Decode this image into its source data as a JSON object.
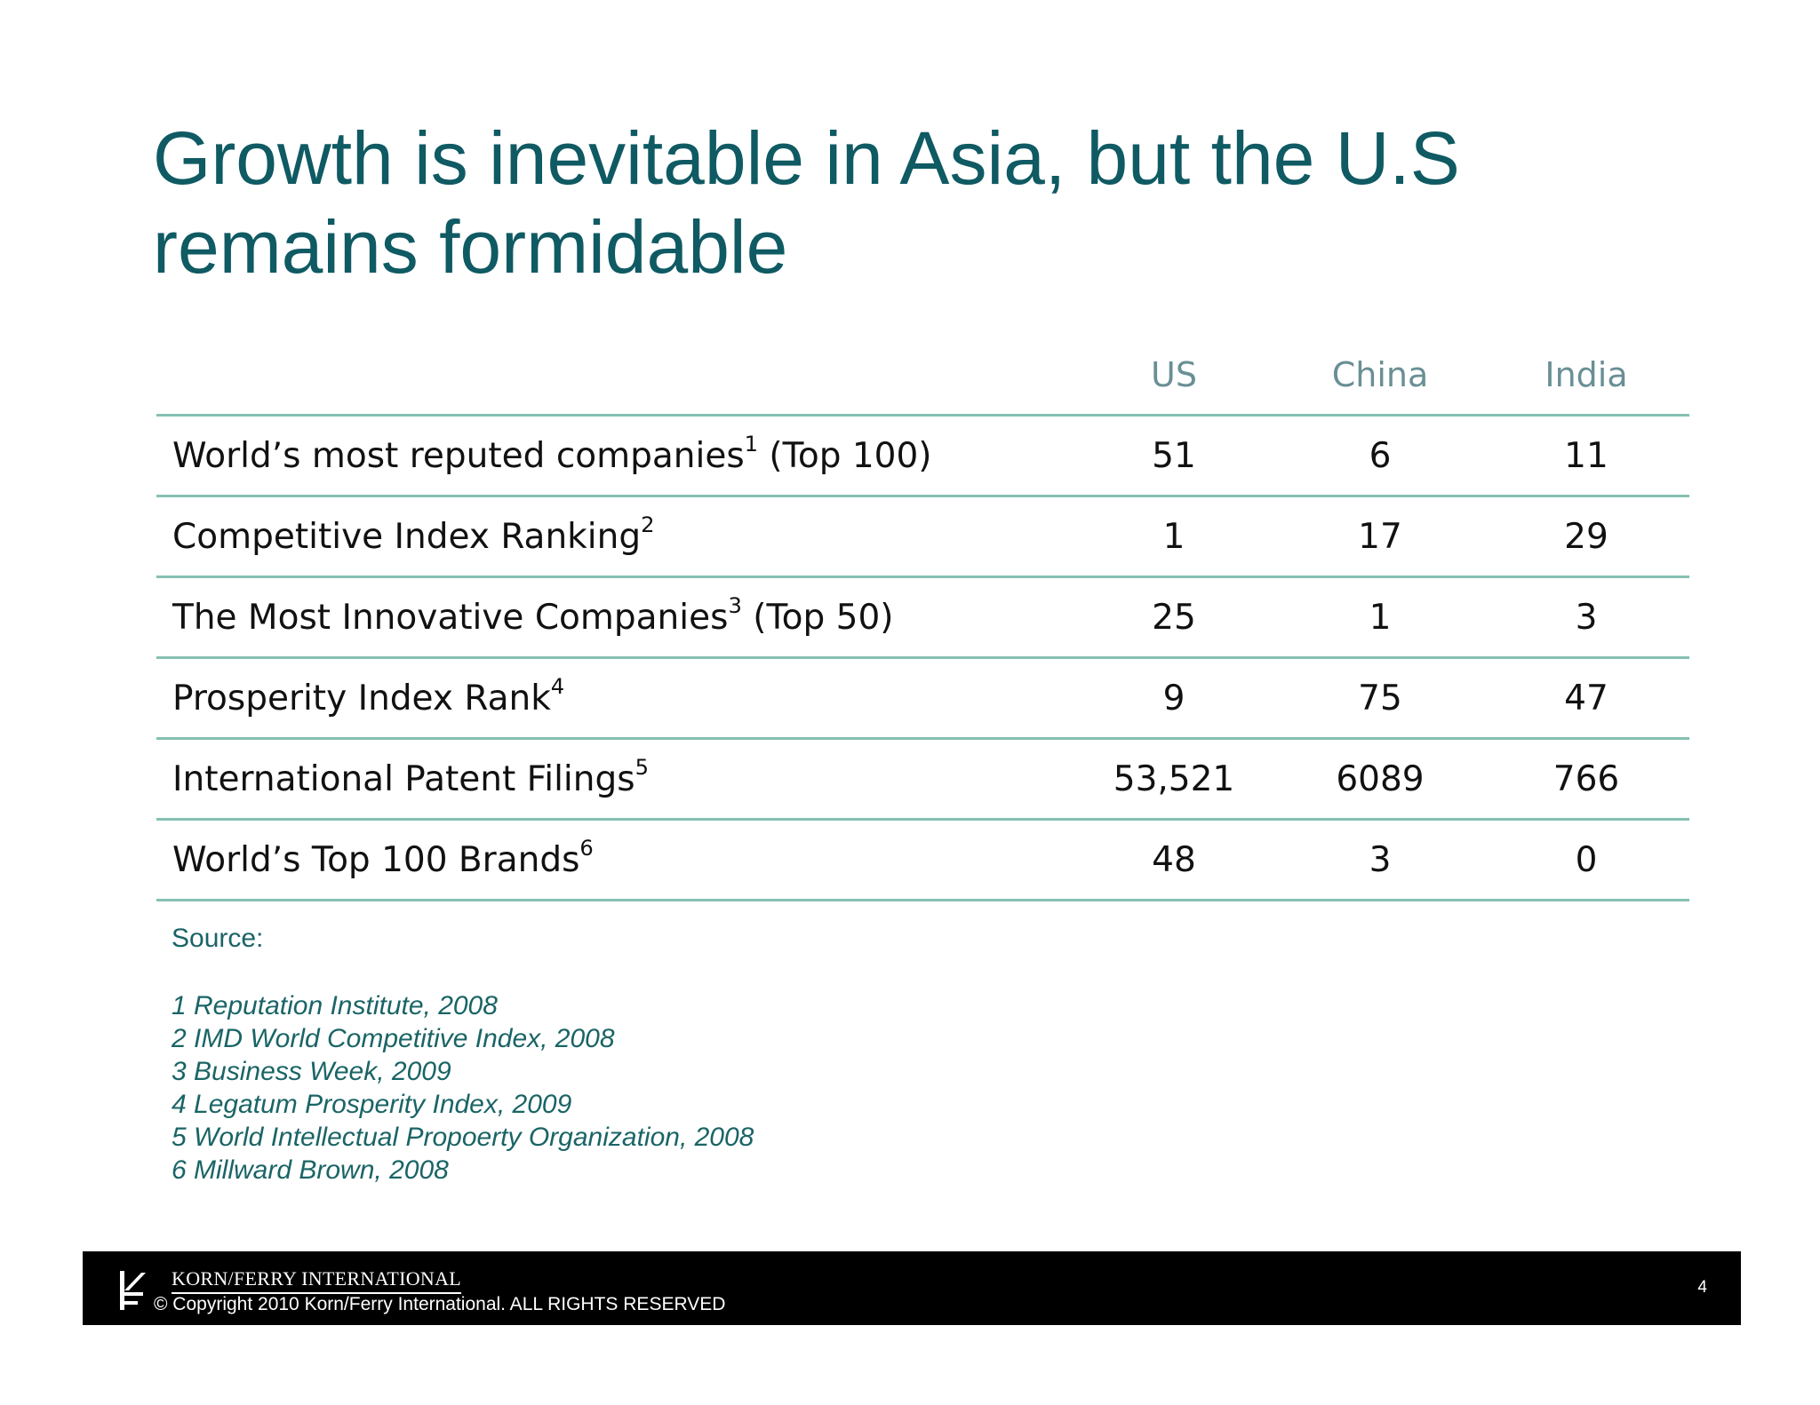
{
  "title": {
    "line1": "Growth is inevitable in Asia, but the U.S",
    "line2": "remains formidable"
  },
  "table": {
    "columns": [
      "US",
      "China",
      "India"
    ],
    "rows": [
      {
        "label": "World’s most reputed companies",
        "sup": "1",
        "suffix": " (Top 100)",
        "values": [
          "51",
          "6",
          "11"
        ]
      },
      {
        "label": "Competitive Index Ranking",
        "sup": "2",
        "suffix": "",
        "values": [
          "1",
          "17",
          "29"
        ]
      },
      {
        "label": "The Most Innovative Companies",
        "sup": "3",
        "suffix": " (Top 50)",
        "values": [
          "25",
          "1",
          "3"
        ]
      },
      {
        "label": "Prosperity Index Rank",
        "sup": "4",
        "suffix": "",
        "values": [
          "9",
          "75",
          "47"
        ]
      },
      {
        "label": "International Patent Filings",
        "sup": "5",
        "suffix": "",
        "values": [
          "53,521",
          "6089",
          "766"
        ]
      },
      {
        "label": "World’s Top 100 Brands",
        "sup": "6",
        "suffix": "",
        "values": [
          "48",
          "3",
          "0"
        ]
      }
    ]
  },
  "sources": {
    "heading": "Source:",
    "items": [
      "1 Reputation Institute, 2008",
      "2 IMD World Competitive Index, 2008",
      "3 Business Week, 2009",
      "4 Legatum Prosperity Index, 2009",
      "5 World Intellectual Propoerty Organization, 2008",
      "6 Millward Brown, 2008"
    ]
  },
  "footer": {
    "brand": "KORN/FERRY INTERNATIONAL",
    "copyright": "© Copyright 2010 Korn/Ferry International. ALL RIGHTS RESERVED",
    "page_number": "4"
  },
  "colors": {
    "title": "#0f5a63",
    "header_text": "#6a8f95",
    "rule": "#86c0b2",
    "source_text": "#1a6466",
    "footer_bg": "#000000"
  }
}
